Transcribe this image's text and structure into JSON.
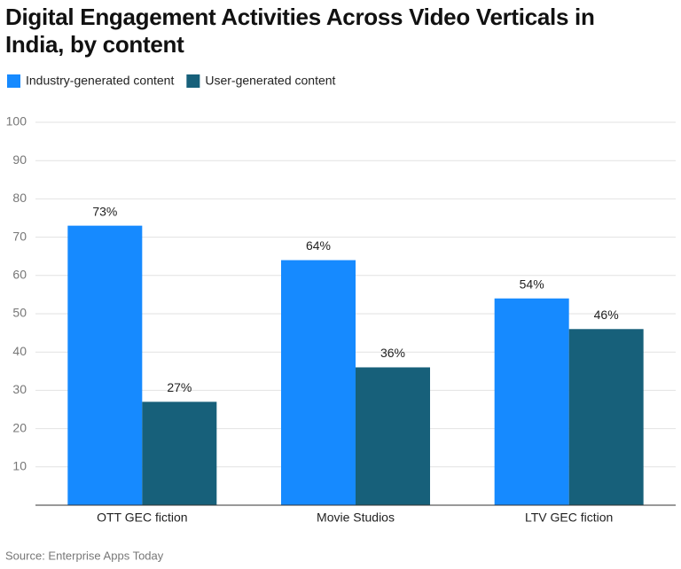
{
  "chart_data": {
    "type": "bar",
    "title": "Digital Engagement Activities Across Video Verticals in India, by content",
    "categories": [
      "OTT GEC fiction",
      "Movie Studios",
      "LTV GEC fiction"
    ],
    "series": [
      {
        "name": "Industry-generated content",
        "color": "#168aff",
        "values": [
          73,
          64,
          54
        ],
        "value_labels": [
          "73%",
          "64%",
          "54%"
        ]
      },
      {
        "name": "User-generated content",
        "color": "#17607a",
        "values": [
          27,
          36,
          46
        ],
        "value_labels": [
          "27%",
          "36%",
          "46%"
        ]
      }
    ],
    "ylim": [
      0,
      100
    ],
    "yticks": [
      10,
      20,
      30,
      40,
      50,
      60,
      70,
      80,
      90,
      100
    ],
    "grid": true,
    "source": "Source: Enterprise Apps Today"
  }
}
